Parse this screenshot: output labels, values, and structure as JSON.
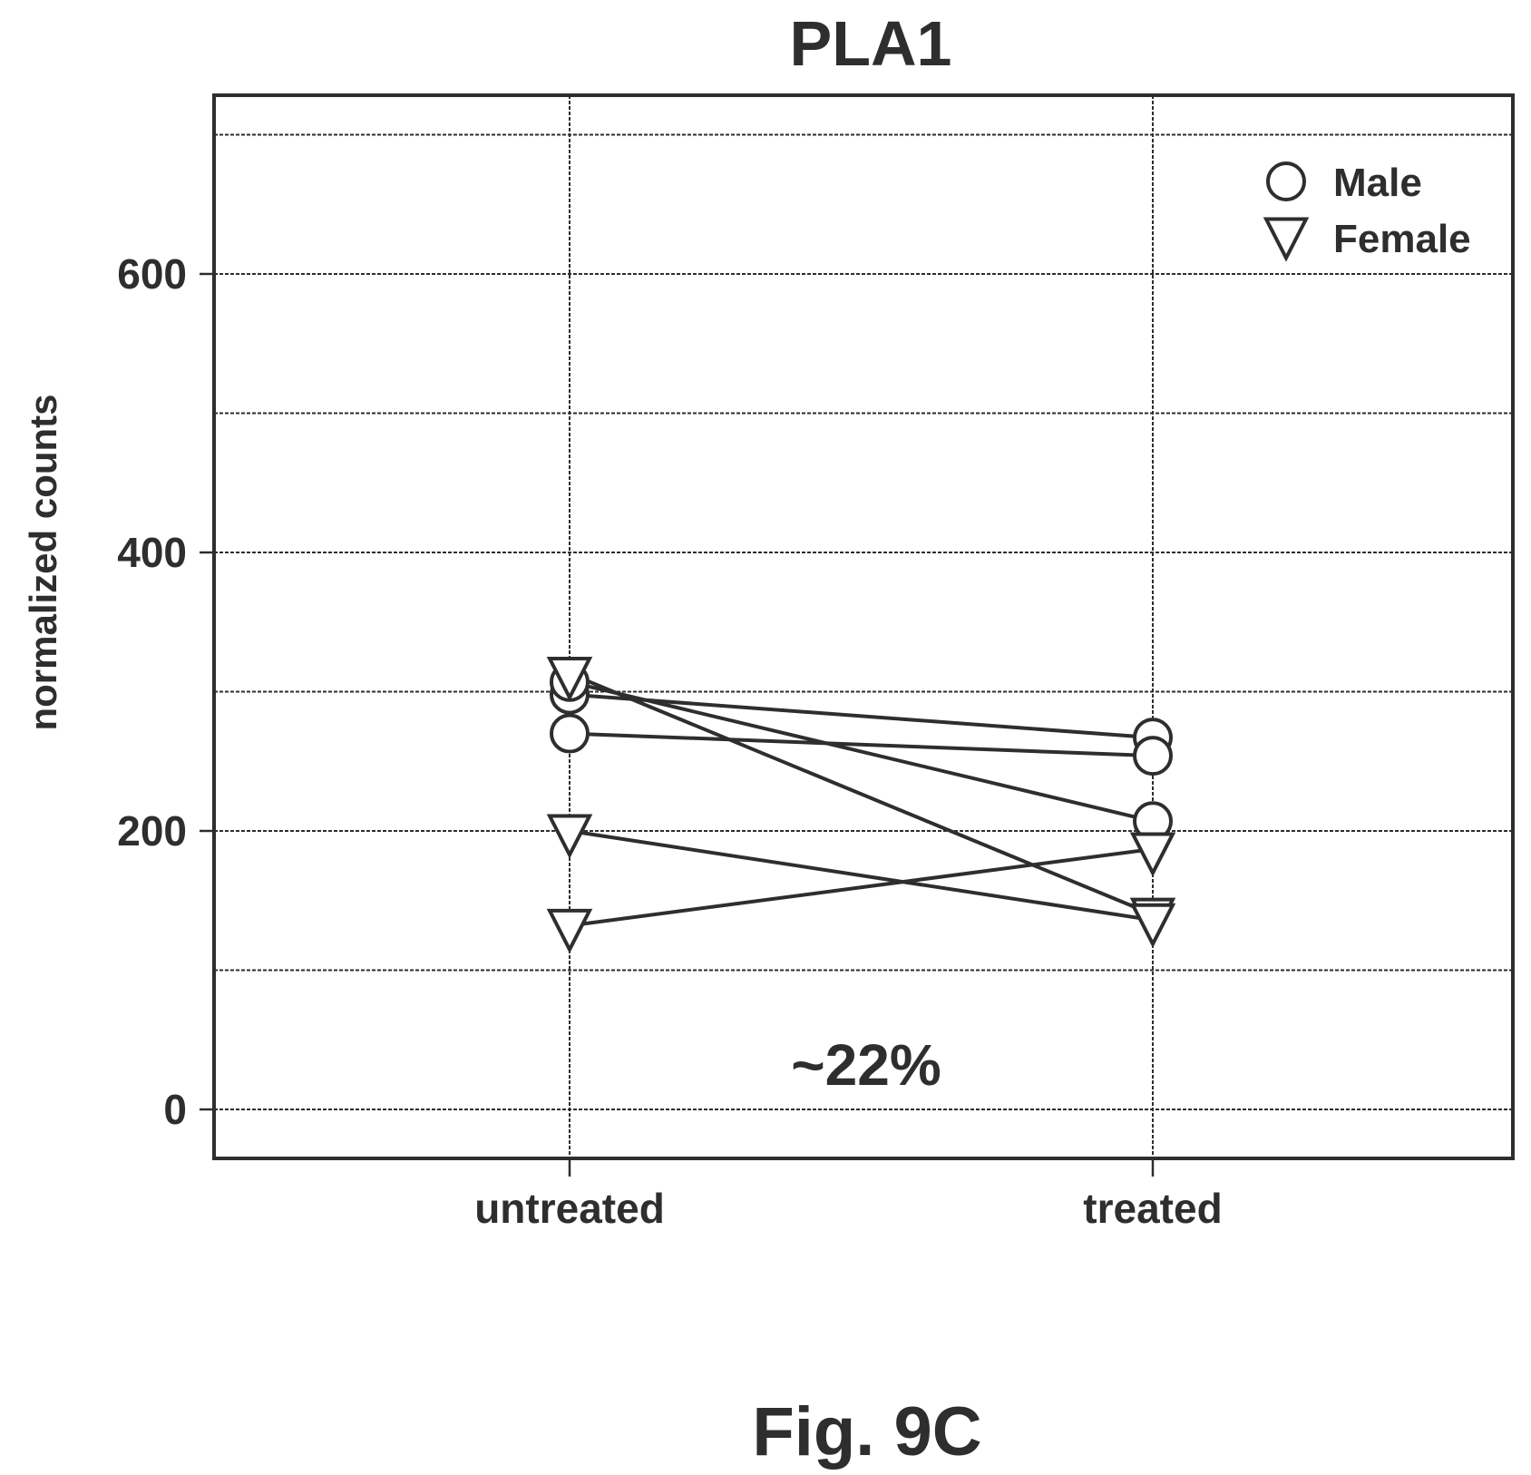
{
  "chart_data": {
    "type": "line",
    "title": "PLA1",
    "xlabel": "",
    "ylabel": "normalized counts",
    "categories": [
      "untreated",
      "treated"
    ],
    "ylim": [
      -35,
      700
    ],
    "yticks": [
      0,
      200,
      400,
      600
    ],
    "grid": true,
    "legend": {
      "position": "top-right",
      "entries": [
        {
          "label": "Male",
          "marker": "circle"
        },
        {
          "label": "Female",
          "marker": "triangle-down"
        }
      ]
    },
    "samples": [
      {
        "group": "Male",
        "values": [
          298,
          267
        ]
      },
      {
        "group": "Male",
        "values": [
          270,
          254
        ]
      },
      {
        "group": "Male",
        "values": [
          307,
          207
        ]
      },
      {
        "group": "Female",
        "values": [
          313,
          140
        ]
      },
      {
        "group": "Female",
        "values": [
          200,
          136
        ]
      },
      {
        "group": "Female",
        "values": [
          132,
          187
        ]
      }
    ],
    "annotation": "~22%",
    "caption": "Fig. 9C"
  }
}
